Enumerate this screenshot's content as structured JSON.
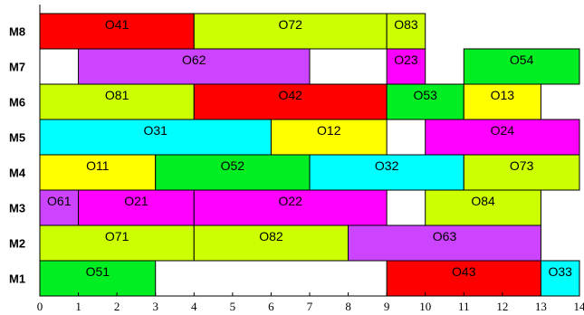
{
  "chart_data": {
    "type": "gantt",
    "title": "",
    "xlabel": "",
    "ylabel": "",
    "xlim": [
      0,
      14
    ],
    "x_ticks": [
      "0",
      "1",
      "2",
      "3",
      "4",
      "5",
      "6",
      "7",
      "8",
      "9",
      "10",
      "11",
      "12",
      "13",
      "14"
    ],
    "machines": [
      "M8",
      "M7",
      "M6",
      "M5",
      "M4",
      "M3",
      "M2",
      "M1"
    ],
    "grid": false,
    "colors": {
      "red": "#ff0000",
      "lime": "#ccff00",
      "magenta": "#ff00ff",
      "violet": "#cc44ff",
      "green": "#00ee22",
      "yellow": "#ffff00",
      "cyan": "#00ffff"
    },
    "tasks": [
      {
        "machine": "M8",
        "label": "O41",
        "start": 0,
        "end": 4,
        "color": "red"
      },
      {
        "machine": "M8",
        "label": "O72",
        "start": 4,
        "end": 9,
        "color": "lime"
      },
      {
        "machine": "M8",
        "label": "O83",
        "start": 9,
        "end": 10,
        "color": "lime"
      },
      {
        "machine": "M7",
        "label": "O62",
        "start": 1,
        "end": 7,
        "color": "violet"
      },
      {
        "machine": "M7",
        "label": "O23",
        "start": 9,
        "end": 10,
        "color": "magenta"
      },
      {
        "machine": "M7",
        "label": "O54",
        "start": 11,
        "end": 14,
        "color": "green"
      },
      {
        "machine": "M6",
        "label": "O81",
        "start": 0,
        "end": 4,
        "color": "lime"
      },
      {
        "machine": "M6",
        "label": "O42",
        "start": 4,
        "end": 9,
        "color": "red"
      },
      {
        "machine": "M6",
        "label": "O53",
        "start": 9,
        "end": 11,
        "color": "green"
      },
      {
        "machine": "M6",
        "label": "O13",
        "start": 11,
        "end": 13,
        "color": "yellow"
      },
      {
        "machine": "M5",
        "label": "O31",
        "start": 0,
        "end": 6,
        "color": "cyan"
      },
      {
        "machine": "M5",
        "label": "O12",
        "start": 6,
        "end": 9,
        "color": "yellow"
      },
      {
        "machine": "M5",
        "label": "O24",
        "start": 10,
        "end": 14,
        "color": "magenta"
      },
      {
        "machine": "M4",
        "label": "O11",
        "start": 0,
        "end": 3,
        "color": "yellow"
      },
      {
        "machine": "M4",
        "label": "O52",
        "start": 3,
        "end": 7,
        "color": "green"
      },
      {
        "machine": "M4",
        "label": "O32",
        "start": 7,
        "end": 11,
        "color": "cyan"
      },
      {
        "machine": "M4",
        "label": "O73",
        "start": 11,
        "end": 14,
        "color": "lime"
      },
      {
        "machine": "M3",
        "label": "O61",
        "start": 0,
        "end": 1,
        "color": "violet"
      },
      {
        "machine": "M3",
        "label": "O21",
        "start": 1,
        "end": 4,
        "color": "magenta"
      },
      {
        "machine": "M3",
        "label": "O22",
        "start": 4,
        "end": 9,
        "color": "magenta"
      },
      {
        "machine": "M3",
        "label": "O84",
        "start": 10,
        "end": 13,
        "color": "lime"
      },
      {
        "machine": "M2",
        "label": "O71",
        "start": 0,
        "end": 4,
        "color": "lime"
      },
      {
        "machine": "M2",
        "label": "O82",
        "start": 4,
        "end": 8,
        "color": "lime"
      },
      {
        "machine": "M2",
        "label": "O63",
        "start": 8,
        "end": 13,
        "color": "violet"
      },
      {
        "machine": "M1",
        "label": "O51",
        "start": 0,
        "end": 3,
        "color": "green"
      },
      {
        "machine": "M1",
        "label": "O43",
        "start": 9,
        "end": 13,
        "color": "red"
      },
      {
        "machine": "M1",
        "label": "O33",
        "start": 13,
        "end": 14,
        "color": "cyan"
      }
    ]
  }
}
